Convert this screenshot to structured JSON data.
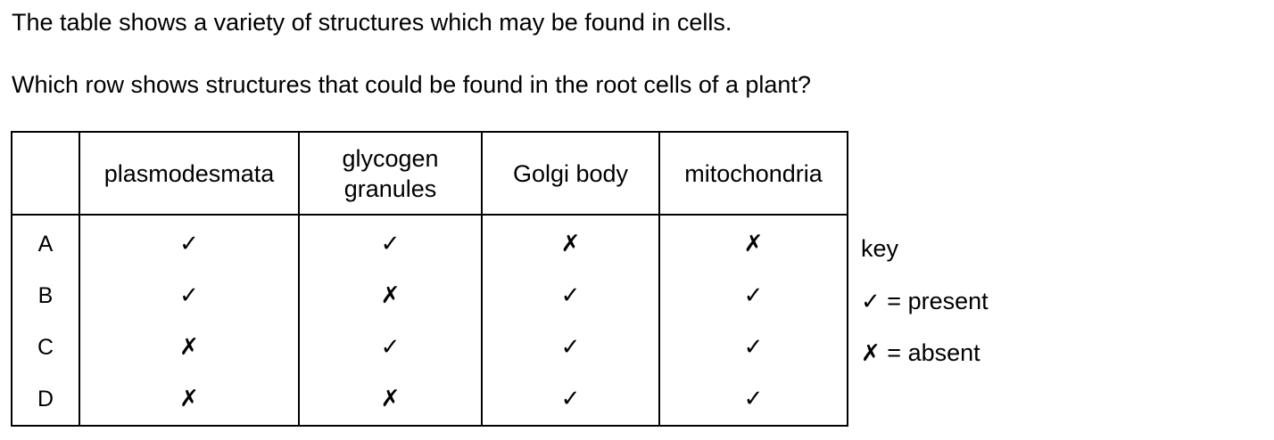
{
  "intro_text": "The table shows a variety of structures which may be found in cells.",
  "question_text": "Which row shows structures that could be found in the root cells of a plant?",
  "table": {
    "headers": [
      "",
      "plasmodesmata",
      "glycogen\ngranules",
      "Golgi body",
      "mitochondria"
    ],
    "rows": [
      {
        "label": "A",
        "cells": [
          "✓",
          "✓",
          "✗",
          "✗"
        ]
      },
      {
        "label": "B",
        "cells": [
          "✓",
          "✗",
          "✓",
          "✓"
        ]
      },
      {
        "label": "C",
        "cells": [
          "✗",
          "✓",
          "✓",
          "✓"
        ]
      },
      {
        "label": "D",
        "cells": [
          "✗",
          "✗",
          "✓",
          "✓"
        ]
      }
    ]
  },
  "key": {
    "title": "key",
    "present_symbol": "✓",
    "present_label": " = present",
    "absent_symbol": "✗",
    "absent_label": " = absent"
  }
}
